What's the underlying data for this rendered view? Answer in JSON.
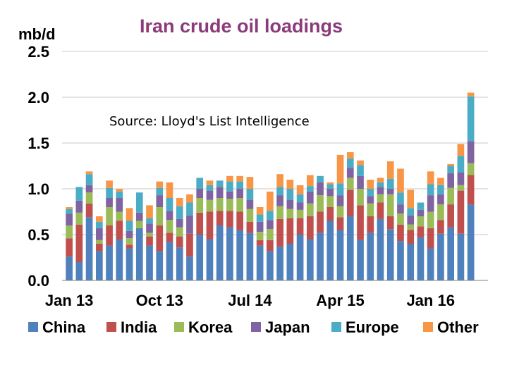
{
  "chart_data": {
    "type": "bar",
    "stacked": true,
    "title": "Iran crude oil loadings",
    "ylabel": "mb/d",
    "annotation": "Source: Lloyd's List Intelligence",
    "ylim": [
      0,
      2.5
    ],
    "yticks": [
      "0.0",
      "0.5",
      "1.0",
      "1.5",
      "2.0",
      "2.5"
    ],
    "xtick_labels": [
      {
        "index": 0,
        "label": "Jan 13"
      },
      {
        "index": 9,
        "label": "Oct 13"
      },
      {
        "index": 18,
        "label": "Jul 14"
      },
      {
        "index": 27,
        "label": "Apr 15"
      },
      {
        "index": 36,
        "label": "Jan 16"
      }
    ],
    "grid": true,
    "legend_position": "bottom",
    "categories": [
      "Jan 13",
      "Feb 13",
      "Mar 13",
      "Apr 13",
      "May 13",
      "Jun 13",
      "Jul 13",
      "Aug 13",
      "Sep 13",
      "Oct 13",
      "Nov 13",
      "Dec 13",
      "Jan 14",
      "Feb 14",
      "Mar 14",
      "Apr 14",
      "May 14",
      "Jun 14",
      "Jul 14",
      "Aug 14",
      "Sep 14",
      "Oct 14",
      "Nov 14",
      "Dec 14",
      "Jan 15",
      "Feb 15",
      "Mar 15",
      "Apr 15",
      "May 15",
      "Jun 15",
      "Jul 15",
      "Aug 15",
      "Sep 15",
      "Oct 15",
      "Nov 15",
      "Dec 15",
      "Jan 16",
      "Feb 16",
      "Mar 16",
      "Apr 16",
      "May 16",
      "Jun 16"
    ],
    "series": [
      {
        "name": "China",
        "color": "#4f81bd",
        "values": [
          0.26,
          0.2,
          0.69,
          0.32,
          0.38,
          0.45,
          0.35,
          0.57,
          0.38,
          0.32,
          0.42,
          0.36,
          0.26,
          0.5,
          0.45,
          0.6,
          0.58,
          0.55,
          0.52,
          0.38,
          0.32,
          0.37,
          0.4,
          0.5,
          0.45,
          0.52,
          0.65,
          0.55,
          0.7,
          0.44,
          0.52,
          0.67,
          0.56,
          0.43,
          0.4,
          0.47,
          0.35,
          0.51,
          0.58,
          0.51,
          0.83,
          0.0
        ]
      },
      {
        "name": "India",
        "color": "#c0504d",
        "values": [
          0.2,
          0.41,
          0.15,
          0.08,
          0.22,
          0.2,
          0.04,
          0.0,
          0.1,
          0.28,
          0.1,
          0.12,
          0.25,
          0.24,
          0.3,
          0.16,
          0.18,
          0.2,
          0.12,
          0.06,
          0.12,
          0.3,
          0.28,
          0.18,
          0.25,
          0.23,
          0.15,
          0.14,
          0.29,
          0.38,
          0.18,
          0.18,
          0.14,
          0.18,
          0.15,
          0.12,
          0.22,
          0.15,
          0.25,
          0.47,
          0.32,
          0.0
        ]
      },
      {
        "name": "Korea",
        "color": "#9bbb59",
        "values": [
          0.14,
          0.13,
          0.12,
          0.04,
          0.2,
          0.1,
          0.07,
          0.08,
          0.04,
          0.2,
          0.14,
          0.1,
          0.0,
          0.16,
          0.13,
          0.14,
          0.13,
          0.15,
          0.14,
          0.09,
          0.12,
          0.14,
          0.1,
          0.09,
          0.14,
          0.18,
          0.12,
          0.12,
          0.13,
          0.18,
          0.14,
          0.09,
          0.24,
          0.12,
          0.06,
          0.11,
          0.18,
          0.17,
          0.18,
          0.06,
          0.13,
          0.0
        ]
      },
      {
        "name": "Japan",
        "color": "#8064a2",
        "values": [
          0.13,
          0.13,
          0.08,
          0.13,
          0.1,
          0.15,
          0.08,
          0.09,
          0.1,
          0.13,
          0.1,
          0.09,
          0.2,
          0.1,
          0.1,
          0.12,
          0.08,
          0.1,
          0.1,
          0.11,
          0.1,
          0.12,
          0.1,
          0.08,
          0.13,
          0.14,
          0.08,
          0.12,
          0.11,
          0.14,
          0.08,
          0.08,
          0.06,
          0.1,
          0.1,
          0.07,
          0.18,
          0.11,
          0.16,
          0.14,
          0.24,
          0.0
        ]
      },
      {
        "name": "Europe",
        "color": "#4bacc6",
        "values": [
          0.05,
          0.15,
          0.12,
          0.07,
          0.11,
          0.07,
          0.11,
          0.22,
          0.06,
          0.08,
          0.14,
          0.14,
          0.14,
          0.12,
          0.06,
          0.07,
          0.11,
          0.08,
          0.12,
          0.08,
          0.1,
          0.09,
          0.12,
          0.09,
          0.06,
          0.07,
          0.05,
          0.13,
          0.1,
          0.12,
          0.08,
          0.05,
          0.11,
          0.13,
          0.08,
          0.08,
          0.12,
          0.1,
          0.08,
          0.18,
          0.49,
          0.0
        ]
      },
      {
        "name": "Other",
        "color": "#f79646",
        "values": [
          0.02,
          0.0,
          0.03,
          0.06,
          0.08,
          0.03,
          0.14,
          0.0,
          0.14,
          0.07,
          0.17,
          0.09,
          0.09,
          0.0,
          0.05,
          0.0,
          0.06,
          0.06,
          0.13,
          0.08,
          0.21,
          0.14,
          0.1,
          0.1,
          0.12,
          0.0,
          0.02,
          0.31,
          0.07,
          0.05,
          0.1,
          0.05,
          0.19,
          0.26,
          0.2,
          0.0,
          0.14,
          0.08,
          0.02,
          0.13,
          0.04,
          0.0
        ]
      }
    ]
  }
}
